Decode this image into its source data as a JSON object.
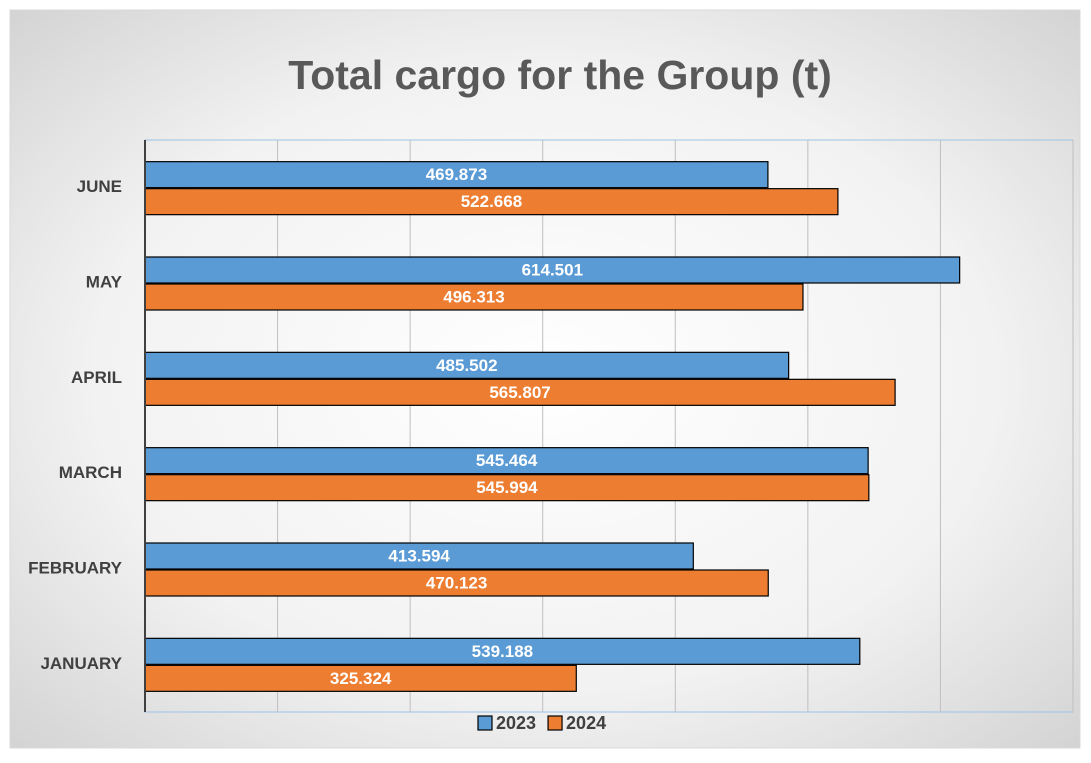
{
  "chart_data": {
    "type": "hbar",
    "title": "Total cargo for the Group (t)",
    "categories": [
      "JANUARY",
      "FEBRUARY",
      "MARCH",
      "APRIL",
      "MAY",
      "JUNE"
    ],
    "series": [
      {
        "name": "2023",
        "color": "#5b9bd5",
        "values": [
          539.188,
          413.594,
          545.464,
          485.502,
          614.501,
          469.873
        ]
      },
      {
        "name": "2024",
        "color": "#ed7d31",
        "values": [
          325.324,
          470.123,
          545.994,
          565.807,
          496.313,
          522.668
        ]
      }
    ],
    "xlim": [
      0,
      700
    ],
    "xticks": [
      0,
      100,
      200,
      300,
      400,
      500,
      600,
      700
    ],
    "grid": true,
    "legend": "bottom",
    "data_labels": true
  }
}
